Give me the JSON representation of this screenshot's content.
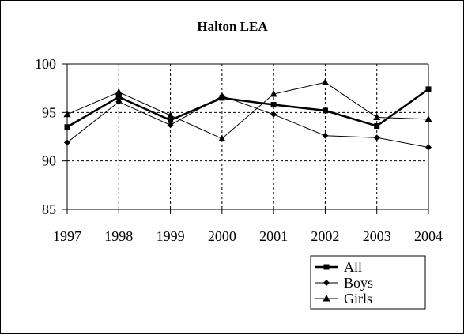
{
  "chart_data": {
    "type": "line",
    "title": "Halton LEA",
    "xlabel": "",
    "ylabel": "",
    "x": [
      "1997",
      "1998",
      "1999",
      "2000",
      "2001",
      "2002",
      "2003",
      "2004"
    ],
    "ylim": [
      85,
      100
    ],
    "yticks": [
      "85",
      "90",
      "95",
      "100"
    ],
    "grid": true,
    "legend_position": "bottom-right",
    "series": [
      {
        "name": "All",
        "marker": "square",
        "values": [
          93.5,
          96.6,
          94.2,
          96.5,
          95.8,
          95.2,
          93.6,
          97.4
        ]
      },
      {
        "name": "Boys",
        "marker": "diamond",
        "values": [
          91.9,
          96.1,
          93.7,
          96.7,
          94.8,
          92.6,
          92.4,
          91.4
        ]
      },
      {
        "name": "Girls",
        "marker": "triangle",
        "values": [
          94.8,
          97.1,
          94.7,
          92.3,
          96.9,
          98.1,
          94.5,
          94.3
        ]
      }
    ]
  }
}
